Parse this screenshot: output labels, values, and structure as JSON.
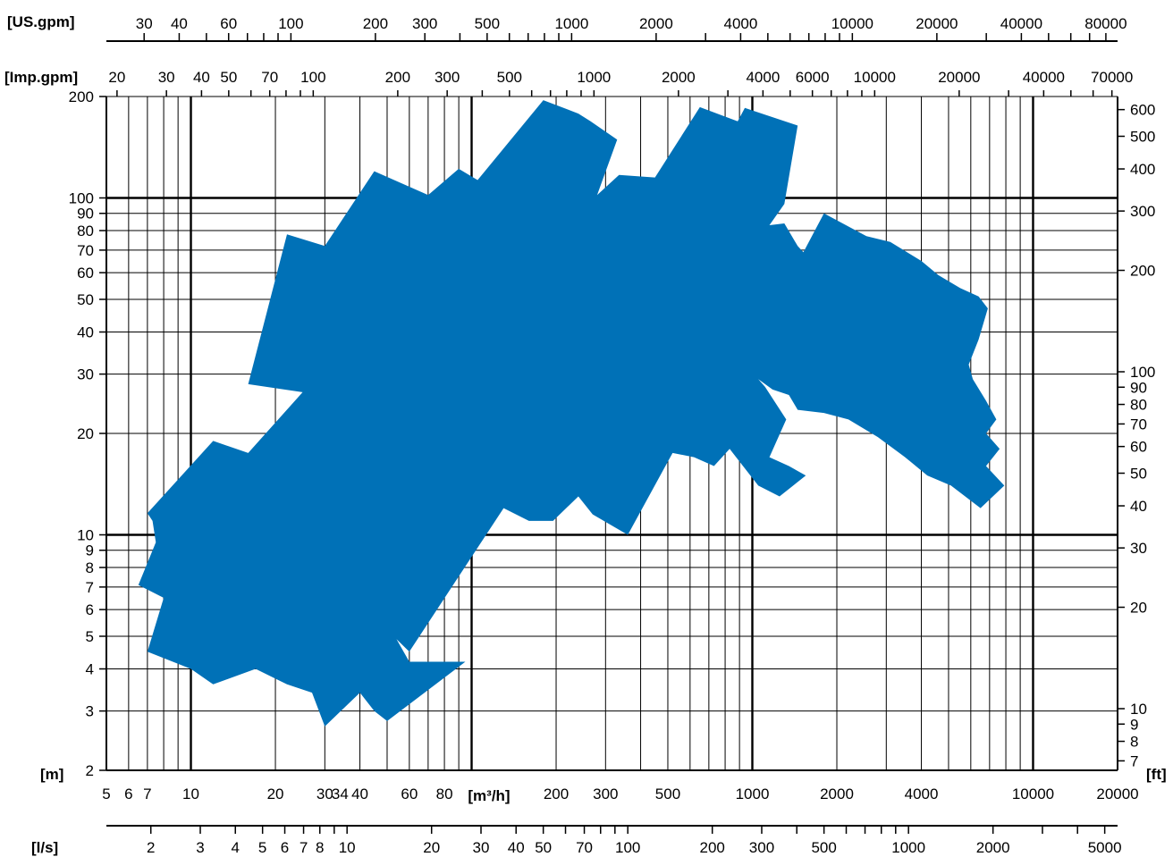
{
  "chart_data": {
    "type": "area",
    "title": "",
    "scale": "log-log",
    "grid": true,
    "colors": {
      "coverage_fill": "#0071b7",
      "grid": "#000000",
      "background": "#ffffff"
    },
    "x_axis": {
      "unit_label": "[m³/h]",
      "range": [
        5,
        20000
      ],
      "tick_labels": [
        "5",
        "6",
        "7",
        "10",
        "20",
        "30",
        "34",
        "40",
        "60",
        "80",
        "200",
        "300",
        "500",
        "1000",
        "2000",
        "4000",
        "10000",
        "20000"
      ],
      "tick_values": [
        5,
        6,
        7,
        10,
        20,
        30,
        34,
        40,
        60,
        80,
        200,
        300,
        500,
        1000,
        2000,
        4000,
        10000,
        20000
      ]
    },
    "y_axis_left": {
      "unit_label": "[m]",
      "range": [
        2,
        200
      ],
      "tick_labels": [
        "2",
        "3",
        "4",
        "5",
        "6",
        "7",
        "8",
        "9",
        "10",
        "20",
        "30",
        "40",
        "50",
        "60",
        "70",
        "80",
        "90",
        "100",
        "200"
      ],
      "tick_values": [
        2,
        3,
        4,
        5,
        6,
        7,
        8,
        9,
        10,
        20,
        30,
        40,
        50,
        60,
        70,
        80,
        90,
        100,
        200
      ]
    },
    "y_axis_right": {
      "unit_label": "[ft]",
      "tick_labels": [
        "7",
        "8",
        "9",
        "10",
        "20",
        "30",
        "40",
        "50",
        "60",
        "70",
        "80",
        "90",
        "100",
        "200",
        "300",
        "400",
        "500",
        "600"
      ],
      "tick_values": [
        7,
        8,
        9,
        10,
        20,
        30,
        40,
        50,
        60,
        70,
        80,
        90,
        100,
        200,
        300,
        400,
        500,
        600
      ]
    },
    "top_axis_us_gpm": {
      "unit_label": "[US.gpm]",
      "tick_labels": [
        "30",
        "40",
        "60",
        "100",
        "200",
        "300",
        "500",
        "1000",
        "2000",
        "4000",
        "10000",
        "20000",
        "40000",
        "80000"
      ],
      "tick_values": [
        30,
        40,
        60,
        100,
        200,
        300,
        500,
        1000,
        2000,
        4000,
        10000,
        20000,
        40000,
        80000
      ]
    },
    "top_axis_imp_gpm": {
      "unit_label": "[Imp.gpm]",
      "tick_labels": [
        "20",
        "30",
        "40",
        "50",
        "70",
        "100",
        "200",
        "300",
        "500",
        "1000",
        "2000",
        "4000",
        "6000",
        "10000",
        "20000",
        "40000",
        "70000"
      ],
      "tick_values": [
        20,
        30,
        40,
        50,
        70,
        100,
        200,
        300,
        500,
        1000,
        2000,
        4000,
        6000,
        10000,
        20000,
        40000,
        70000
      ]
    },
    "bottom_axis_ls": {
      "unit_label": "[l/s]",
      "tick_labels": [
        "2",
        "3",
        "4",
        "5",
        "6",
        "7",
        "8",
        "10",
        "20",
        "30",
        "40",
        "50",
        "70",
        "100",
        "200",
        "300",
        "500",
        "1000",
        "2000",
        "5000"
      ],
      "tick_values": [
        2,
        3,
        4,
        5,
        6,
        7,
        8,
        10,
        20,
        30,
        40,
        50,
        70,
        100,
        200,
        300,
        500,
        1000,
        2000,
        5000
      ]
    },
    "coverage_polygon": [
      [
        7,
        11.6
      ],
      [
        12,
        19
      ],
      [
        16,
        17.5
      ],
      [
        25,
        26.5
      ],
      [
        16,
        28
      ],
      [
        22,
        78
      ],
      [
        30,
        72
      ],
      [
        45,
        120
      ],
      [
        70,
        102
      ],
      [
        90,
        122
      ],
      [
        105,
        113
      ],
      [
        180,
        195
      ],
      [
        240,
        178
      ],
      [
        265,
        169
      ],
      [
        330,
        149
      ],
      [
        280,
        102
      ],
      [
        335,
        117
      ],
      [
        450,
        115
      ],
      [
        650,
        186
      ],
      [
        900,
        168
      ],
      [
        700,
        117
      ],
      [
        940,
        185
      ],
      [
        1450,
        164
      ],
      [
        1300,
        96
      ],
      [
        1150,
        83
      ],
      [
        1300,
        84
      ],
      [
        1450,
        72
      ],
      [
        1520,
        69
      ],
      [
        1800,
        90
      ],
      [
        2550,
        77
      ],
      [
        3100,
        74
      ],
      [
        4000,
        65
      ],
      [
        4600,
        59
      ],
      [
        5500,
        54
      ],
      [
        6400,
        51
      ],
      [
        6900,
        47
      ],
      [
        6400,
        38
      ],
      [
        5900,
        32
      ],
      [
        6100,
        29
      ],
      [
        6800,
        25
      ],
      [
        7400,
        22
      ],
      [
        6800,
        20
      ],
      [
        7600,
        18
      ],
      [
        6800,
        16
      ],
      [
        7900,
        14
      ],
      [
        6500,
        12
      ],
      [
        5100,
        14
      ],
      [
        4200,
        15
      ],
      [
        3500,
        17
      ],
      [
        2800,
        19.5
      ],
      [
        2200,
        22
      ],
      [
        1800,
        23
      ],
      [
        1450,
        23.5
      ],
      [
        1350,
        26
      ],
      [
        1180,
        27
      ],
      [
        1050,
        29
      ],
      [
        1110,
        27.5
      ],
      [
        1320,
        22
      ],
      [
        1150,
        17
      ],
      [
        1350,
        16
      ],
      [
        1550,
        15
      ],
      [
        1250,
        13
      ],
      [
        1050,
        14
      ],
      [
        830,
        18
      ],
      [
        730,
        16
      ],
      [
        620,
        17
      ],
      [
        520,
        17.5
      ],
      [
        500,
        16.5
      ],
      [
        360,
        10
      ],
      [
        270,
        11.5
      ],
      [
        240,
        13
      ],
      [
        195,
        11
      ],
      [
        160,
        11
      ],
      [
        130,
        12
      ],
      [
        60,
        4.5
      ],
      [
        54,
        4.9
      ],
      [
        60,
        4.2
      ],
      [
        90,
        4.2
      ],
      [
        95,
        4.2
      ],
      [
        50,
        2.8
      ],
      [
        45,
        3
      ],
      [
        40,
        3.4
      ],
      [
        30,
        2.7
      ],
      [
        27,
        3.4
      ],
      [
        22,
        3.6
      ],
      [
        17,
        4
      ],
      [
        12,
        3.6
      ],
      [
        10,
        4
      ],
      [
        7,
        4.5
      ],
      [
        8,
        6.5
      ],
      [
        6.5,
        7.1
      ],
      [
        7.5,
        9.5
      ],
      [
        7.3,
        11
      ]
    ]
  }
}
